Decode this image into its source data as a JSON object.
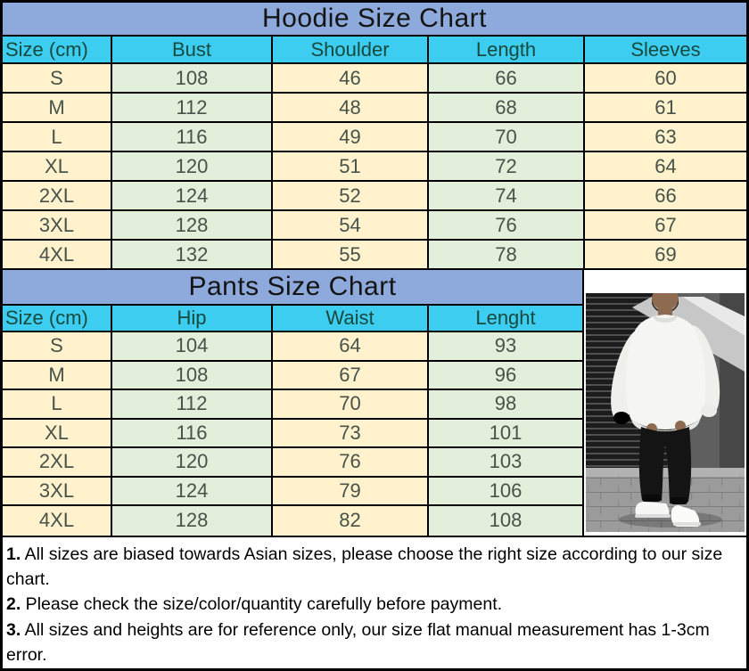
{
  "colors": {
    "title_bg": "#8EA9DB",
    "header_bg": "#3CCDF1",
    "col_cream": "#FFF2CC",
    "col_green": "#E2EFDA",
    "header_text": "#17493D",
    "cell_text": "#47524A",
    "border": "#000000"
  },
  "hoodie": {
    "title": "Hoodie Size Chart",
    "columns": [
      "Size  (cm)",
      "Bust",
      "Shoulder",
      "Length",
      "Sleeves"
    ],
    "rows": [
      [
        "S",
        "108",
        "46",
        "66",
        "60"
      ],
      [
        "M",
        "112",
        "48",
        "68",
        "61"
      ],
      [
        "L",
        "116",
        "49",
        "70",
        "63"
      ],
      [
        "XL",
        "120",
        "51",
        "72",
        "64"
      ],
      [
        "2XL",
        "124",
        "52",
        "74",
        "66"
      ],
      [
        "3XL",
        "128",
        "54",
        "76",
        "67"
      ],
      [
        "4XL",
        "132",
        "55",
        "78",
        "69"
      ]
    ]
  },
  "pants": {
    "title": "Pants Size Chart",
    "columns": [
      "Size  (cm)",
      "Hip",
      "Waist",
      "Lenght"
    ],
    "rows": [
      [
        "S",
        "104",
        "64",
        "93"
      ],
      [
        "M",
        "108",
        "67",
        "96"
      ],
      [
        "L",
        "112",
        "70",
        "98"
      ],
      [
        "XL",
        "116",
        "73",
        "101"
      ],
      [
        "2XL",
        "120",
        "76",
        "103"
      ],
      [
        "3XL",
        "124",
        "79",
        "106"
      ],
      [
        "4XL",
        "128",
        "82",
        "108"
      ]
    ]
  },
  "photo": {
    "description": "model wearing white oversized sweatshirt, black jogger pants and white sneakers standing on paved street"
  },
  "notes": [
    {
      "num": "1.",
      "text": " All sizes are biased towards Asian sizes, please choose the right size according to our size chart."
    },
    {
      "num": "2.",
      "text": " Please check the size/color/quantity carefully before payment."
    },
    {
      "num": "3.",
      "text": " All sizes and heights are for reference only, our size flat manual measurement has  1-3cm error."
    }
  ]
}
